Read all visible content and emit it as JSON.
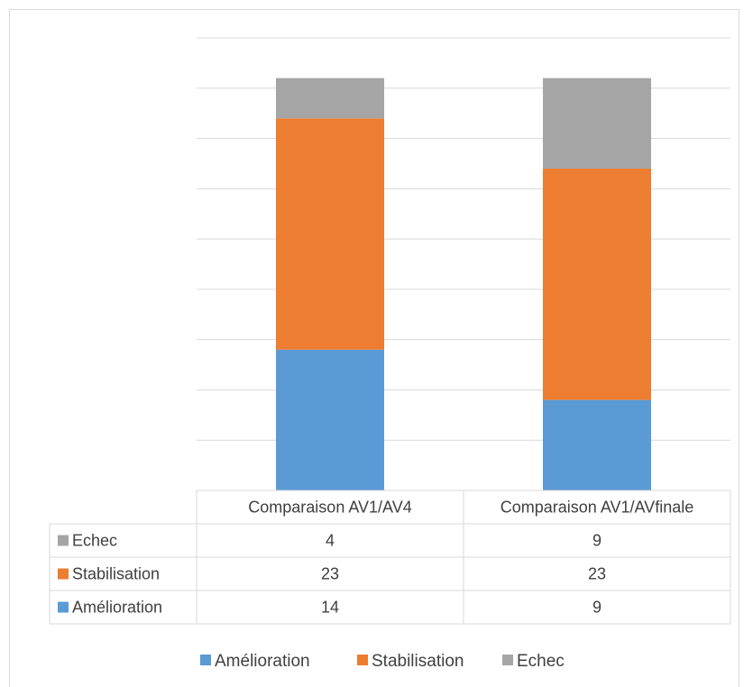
{
  "chart_data": {
    "type": "bar",
    "stacked": true,
    "categories": [
      "Comparaison AV1/AV4",
      "Comparaison AV1/AVfinale"
    ],
    "series": [
      {
        "name": "Amélioration",
        "values": [
          14,
          9
        ],
        "color": "#5b9bd5"
      },
      {
        "name": "Stabilisation",
        "values": [
          23,
          23
        ],
        "color": "#ed7d31"
      },
      {
        "name": "Echec",
        "values": [
          4,
          9
        ],
        "color": "#a5a5a5"
      }
    ],
    "table_row_order": [
      "Echec",
      "Stabilisation",
      "Amélioration"
    ],
    "ylim": [
      0,
      45
    ],
    "grid": true,
    "data_table": true,
    "legend_position": "bottom",
    "title": "",
    "xlabel": "",
    "ylabel": ""
  }
}
